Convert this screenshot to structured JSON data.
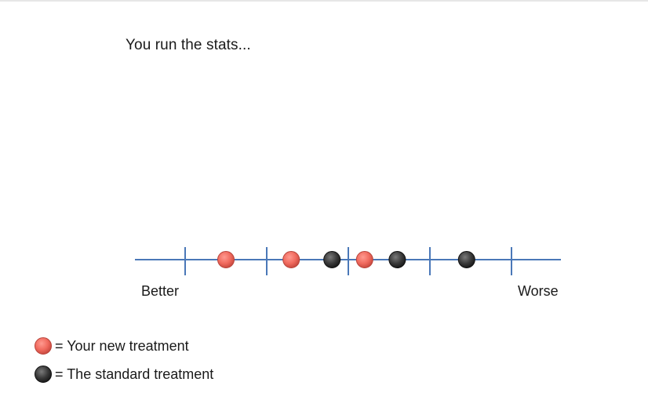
{
  "title": "You run the stats...",
  "scale": {
    "left_label": "Better",
    "right_label": "Worse",
    "ticks": 5,
    "line_color": "#4a78b8",
    "points": [
      {
        "group": "new",
        "position": 0.5
      },
      {
        "group": "new",
        "position": 1.3
      },
      {
        "group": "standard",
        "position": 1.8
      },
      {
        "group": "new",
        "position": 2.2
      },
      {
        "group": "standard",
        "position": 2.6
      },
      {
        "group": "standard",
        "position": 3.45
      }
    ]
  },
  "legend": {
    "new": {
      "label": "= Your new treatment",
      "color": "#f06a5e",
      "icon": "red-circle-icon"
    },
    "standard": {
      "label": "= The standard treatment",
      "color": "#3a3a3a",
      "icon": "dark-circle-icon"
    }
  }
}
